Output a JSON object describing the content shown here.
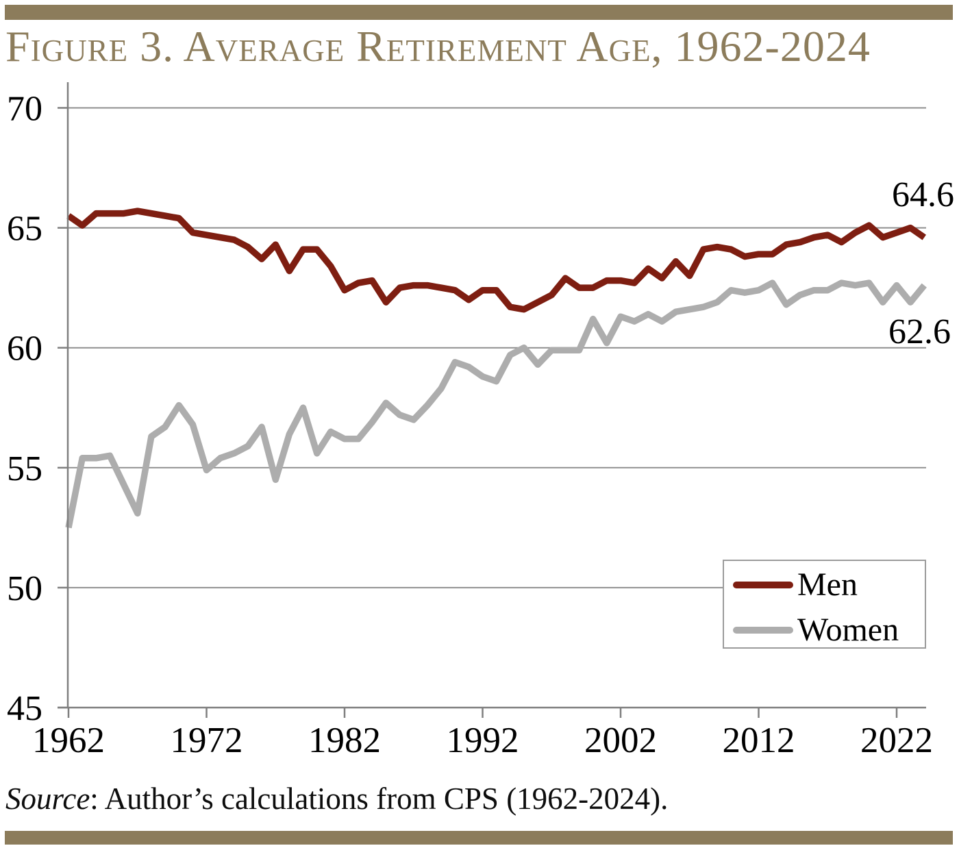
{
  "header": {
    "title": "Figure 3. Average Retirement Age, 1962-2024",
    "accent_color": "#8C7C5B",
    "title_color": "#8C7C5B"
  },
  "chart_data": {
    "type": "line",
    "title": "Figure 3. Average Retirement Age, 1962-2024",
    "xlabel": "",
    "ylabel": "",
    "ylim": [
      45,
      70
    ],
    "yticks": [
      45,
      50,
      55,
      60,
      65,
      70
    ],
    "xticks": [
      1962,
      1972,
      1982,
      1992,
      2002,
      2012,
      2022
    ],
    "grid": true,
    "legend_position": "bottom-right",
    "axis_color": "#7f7f7f",
    "gridline_color": "#8f8f8f",
    "tick_label_color": "#000000",
    "x": [
      1962,
      1963,
      1964,
      1965,
      1966,
      1967,
      1968,
      1969,
      1970,
      1971,
      1972,
      1973,
      1974,
      1975,
      1976,
      1977,
      1978,
      1979,
      1980,
      1981,
      1982,
      1983,
      1984,
      1985,
      1986,
      1987,
      1988,
      1989,
      1990,
      1991,
      1992,
      1993,
      1994,
      1995,
      1996,
      1997,
      1998,
      1999,
      2000,
      2001,
      2002,
      2003,
      2004,
      2005,
      2006,
      2007,
      2008,
      2009,
      2010,
      2011,
      2012,
      2013,
      2014,
      2015,
      2016,
      2017,
      2018,
      2019,
      2020,
      2021,
      2022,
      2023,
      2024
    ],
    "series": [
      {
        "name": "Men",
        "color": "#7E1E11",
        "values": [
          65.5,
          65.1,
          65.6,
          65.6,
          65.6,
          65.7,
          65.6,
          65.5,
          65.4,
          64.8,
          64.7,
          64.6,
          64.5,
          64.2,
          63.7,
          64.3,
          63.2,
          64.1,
          64.1,
          63.4,
          62.4,
          62.7,
          62.8,
          61.9,
          62.5,
          62.6,
          62.6,
          62.5,
          62.4,
          62.0,
          62.4,
          62.4,
          61.7,
          61.6,
          61.9,
          62.2,
          62.9,
          62.5,
          62.5,
          62.8,
          62.8,
          62.7,
          63.3,
          62.9,
          63.6,
          63.0,
          64.1,
          64.2,
          64.1,
          63.8,
          63.9,
          63.9,
          64.3,
          64.4,
          64.6,
          64.7,
          64.4,
          64.8,
          65.1,
          64.6,
          64.8,
          65.0,
          64.6
        ]
      },
      {
        "name": "Women",
        "color": "#ADADAD",
        "values": [
          52.5,
          55.4,
          55.4,
          55.5,
          54.3,
          53.1,
          56.3,
          56.7,
          57.6,
          56.8,
          54.9,
          55.4,
          55.6,
          55.9,
          56.7,
          54.5,
          56.4,
          57.5,
          55.6,
          56.5,
          56.2,
          56.2,
          56.9,
          57.7,
          57.2,
          57.0,
          57.6,
          58.3,
          59.4,
          59.2,
          58.8,
          58.6,
          59.7,
          60.0,
          59.3,
          59.9,
          59.9,
          59.9,
          61.2,
          60.2,
          61.3,
          61.1,
          61.4,
          61.1,
          61.5,
          61.6,
          61.7,
          61.9,
          62.4,
          62.3,
          62.4,
          62.7,
          61.8,
          62.2,
          62.4,
          62.4,
          62.7,
          62.6,
          62.7,
          61.9,
          62.6,
          61.9,
          62.6
        ]
      }
    ],
    "end_labels": [
      {
        "series": "Men",
        "text": "64.6"
      },
      {
        "series": "Women",
        "text": "62.6"
      }
    ]
  },
  "legend": {
    "items": [
      {
        "label": "Men",
        "color": "#7E1E11"
      },
      {
        "label": "Women",
        "color": "#ADADAD"
      }
    ]
  },
  "footer": {
    "source_label": "Source",
    "source_text": ": Author’s calculations from CPS (1962-2024)."
  }
}
